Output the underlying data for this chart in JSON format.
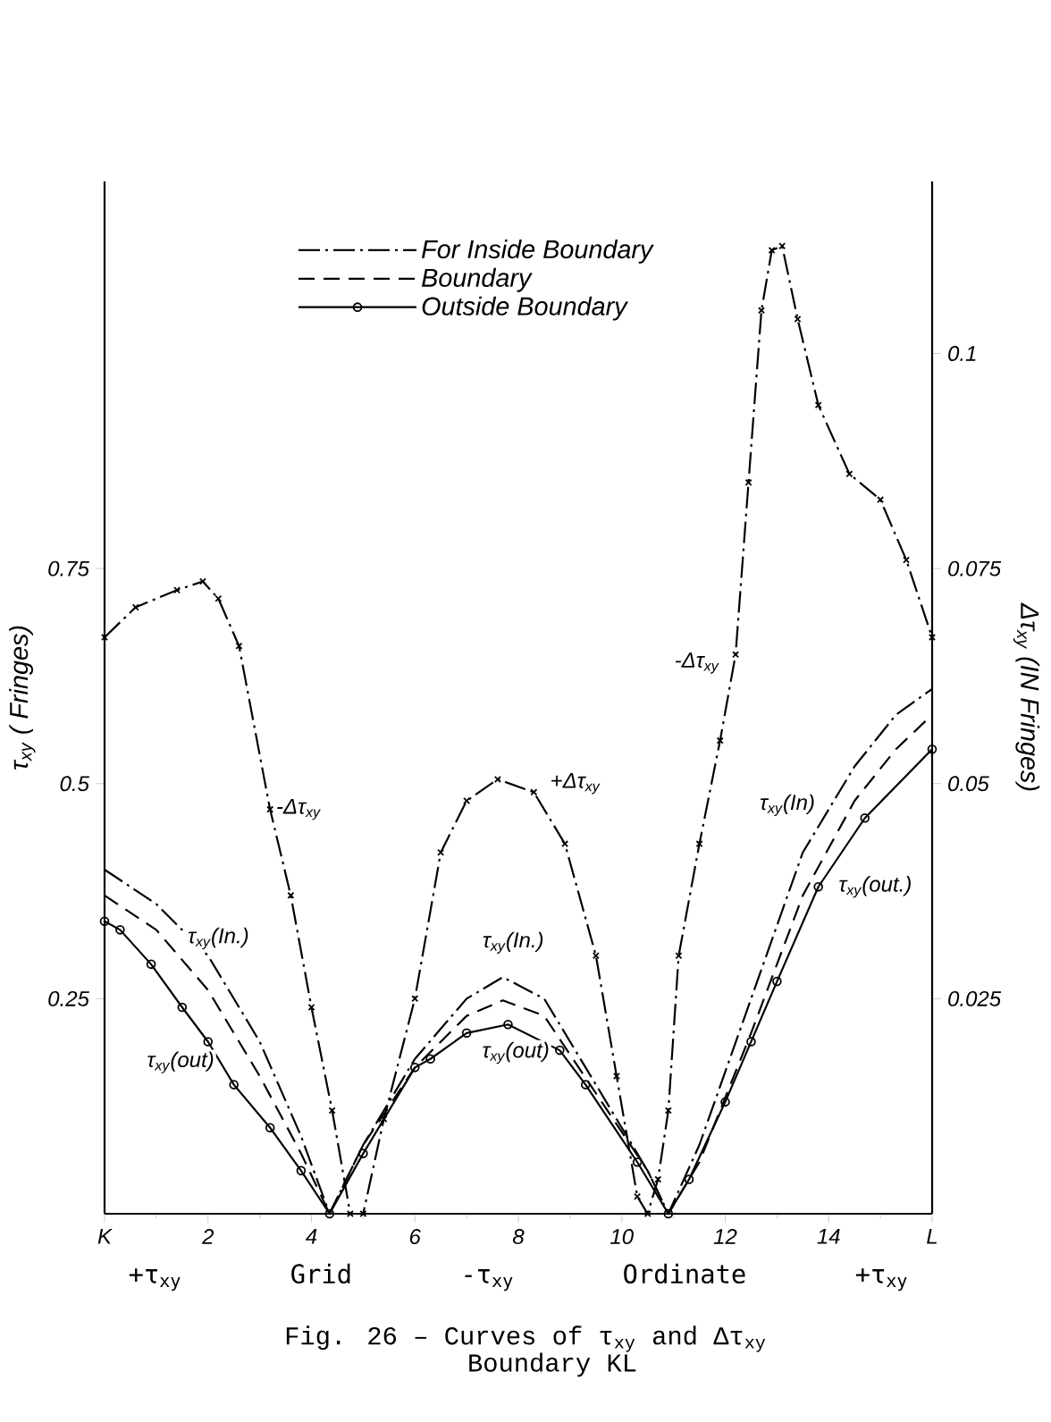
{
  "chart_data": {
    "type": "line",
    "title": "Fig. 26 – Curves of τ$_{xy}$ and Δτ$_{xy}$",
    "subtitle": "Boundary KL",
    "xlabel": "+τ$_{xy}$ Grid -τ$_{xy}$ Ordinate +τ$_{xy}$",
    "ylabel": "τ$_{xy}$ ( Fringes)",
    "y2label": "Δτ$_{xy}$ (IN Fringes)",
    "xlim": [
      0,
      16
    ],
    "xticks": [
      {
        "value": 0,
        "label": "K"
      },
      2,
      4,
      6,
      8,
      10,
      12,
      14,
      {
        "value": 16,
        "label": "L"
      }
    ],
    "ylim": [
      0,
      1.2
    ],
    "yticks": [
      0.25,
      0.5,
      0.75
    ],
    "y2lim": [
      0,
      0.12
    ],
    "y2ticks": [
      0.025,
      0.05,
      0.075,
      0.1
    ],
    "legend": "top",
    "series": [
      {
        "name": "For Inside Boundary",
        "color": "#000000",
        "line_style": "dashdot",
        "marker": "none",
        "x": [
          0,
          1,
          2,
          3,
          3.8,
          4.35,
          5,
          6,
          7,
          7.7,
          8.5,
          9.5,
          10.5,
          10.9,
          11.5,
          12.5,
          13.5,
          14.5,
          15.3,
          16
        ],
        "values": [
          0.4,
          0.36,
          0.3,
          0.2,
          0.09,
          0,
          0.08,
          0.18,
          0.25,
          0.275,
          0.25,
          0.15,
          0.05,
          0,
          0.08,
          0.25,
          0.42,
          0.52,
          0.58,
          0.61
        ]
      },
      {
        "name": "Boundary",
        "color": "#000000",
        "line_style": "dashed",
        "marker": "none",
        "x": [
          0,
          1,
          2,
          3,
          3.8,
          4.35,
          5,
          6,
          7,
          7.7,
          8.5,
          9.5,
          10.5,
          10.9,
          11.5,
          12.5,
          13.5,
          14.5,
          15.3,
          16
        ],
        "values": [
          0.37,
          0.33,
          0.26,
          0.16,
          0.07,
          0,
          0.08,
          0.17,
          0.23,
          0.248,
          0.23,
          0.14,
          0.05,
          0,
          0.06,
          0.21,
          0.37,
          0.48,
          0.54,
          0.58
        ]
      },
      {
        "name": "Outside Boundary",
        "color": "#000000",
        "line_style": "solid",
        "marker": "circle",
        "x": [
          0,
          0.3,
          0.9,
          1.5,
          2,
          2.5,
          3.2,
          3.8,
          4.35,
          5,
          6,
          6.3,
          7,
          7.8,
          8.8,
          9.3,
          10.3,
          10.9,
          11.3,
          12,
          12.5,
          13,
          13.8,
          14.7,
          16
        ],
        "values": [
          0.34,
          0.33,
          0.29,
          0.24,
          0.2,
          0.15,
          0.1,
          0.05,
          0,
          0.07,
          0.17,
          0.18,
          0.21,
          0.22,
          0.19,
          0.15,
          0.06,
          0,
          0.04,
          0.13,
          0.2,
          0.27,
          0.38,
          0.46,
          0.54
        ]
      },
      {
        "axis": "y2",
        "color": "#000000",
        "line_style": "dashdot",
        "marker": "cross",
        "x": [
          0,
          0.6,
          1.4,
          1.9,
          2.2,
          2.6,
          3.2,
          3.6,
          4.0,
          4.4,
          4.75,
          5.0,
          5.4,
          6.0,
          6.5,
          7.0,
          7.6,
          8.3,
          8.9,
          9.5,
          9.9,
          10.3,
          10.5,
          10.7,
          10.9,
          11.1,
          11.5,
          11.9,
          12.2,
          12.45,
          12.7,
          12.9,
          13.1,
          13.4,
          13.8,
          14.4,
          15.0,
          15.5,
          16
        ],
        "values": [
          0.067,
          0.0705,
          0.0725,
          0.0735,
          0.0715,
          0.066,
          0.047,
          0.037,
          0.024,
          0.012,
          0,
          0,
          0.011,
          0.025,
          0.042,
          0.048,
          0.0505,
          0.049,
          0.043,
          0.03,
          0.016,
          0.002,
          0,
          0.004,
          0.012,
          0.03,
          0.043,
          0.055,
          0.065,
          0.085,
          0.105,
          0.112,
          0.1125,
          0.104,
          0.094,
          0.086,
          0.083,
          0.076,
          0.067
        ]
      }
    ],
    "annotations": [
      "-Δτ$_{xy}$",
      "+Δτ$_{xy}$",
      "-Δτ$_{xy}$",
      "τ$_{xy}$(In.)",
      "τ$_{xy}$(out)",
      "τ$_{xy}$(In.)",
      "τ$_{xy}$(out)",
      "τ$_{xy}$(In)",
      "τ$_{xy}$(out.)"
    ]
  }
}
